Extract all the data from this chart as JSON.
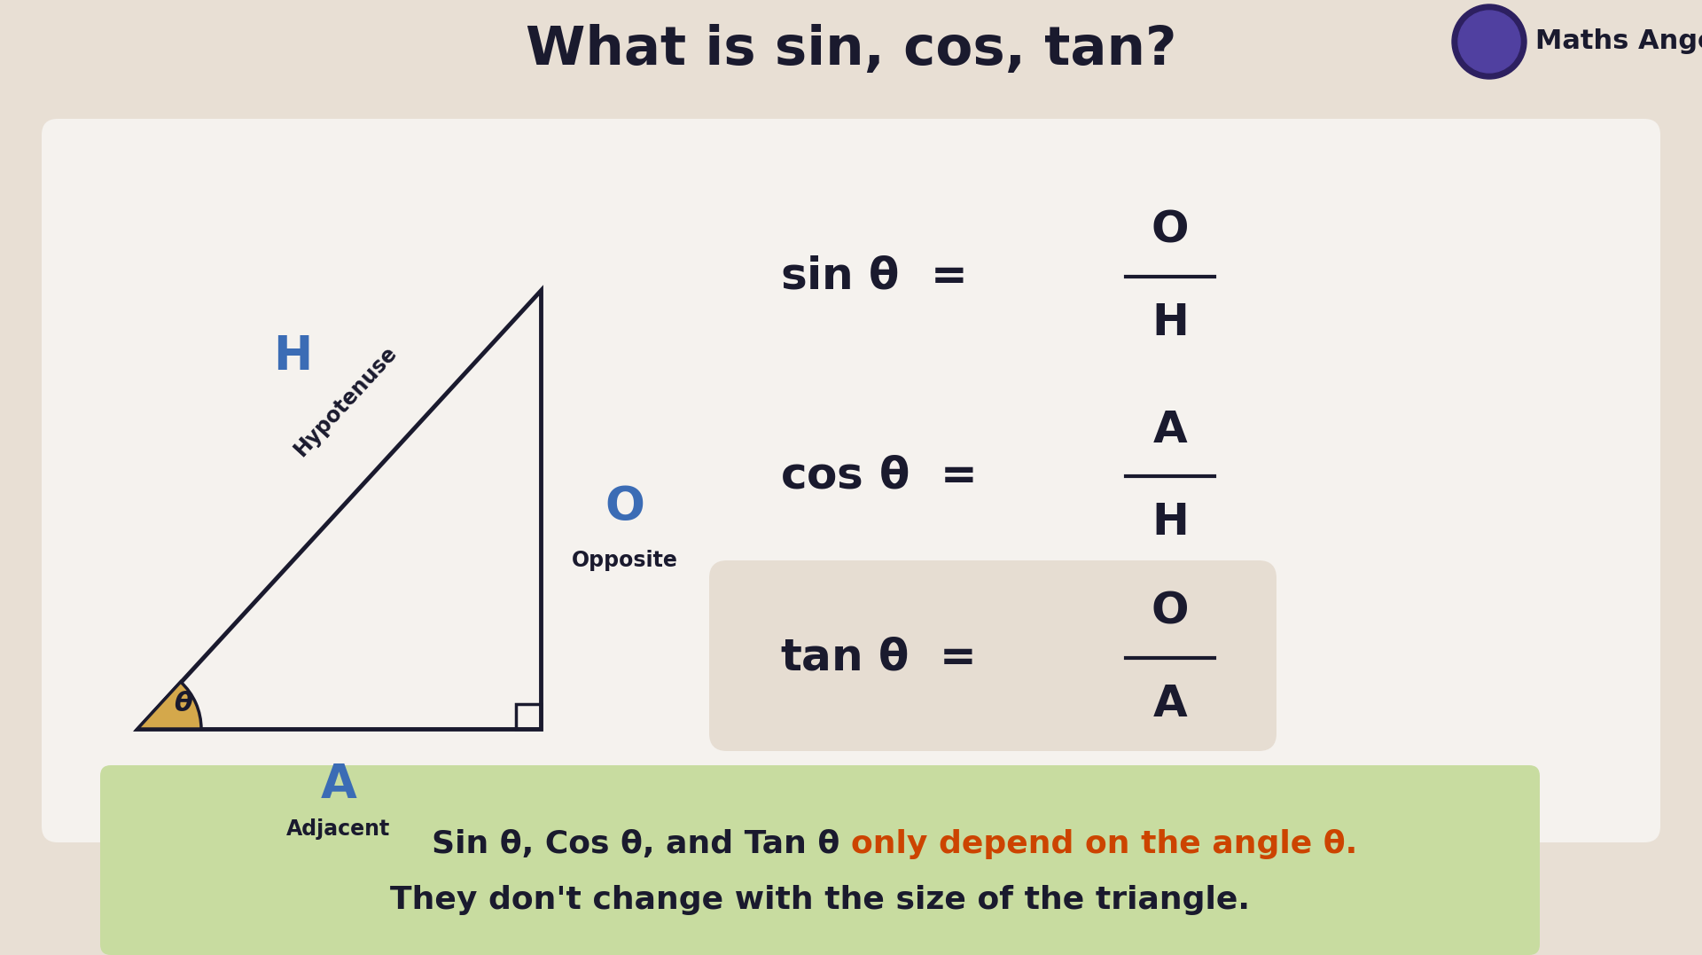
{
  "title": "What is sin, cos, tan?",
  "title_color": "#1a1a2e",
  "title_fontsize": 44,
  "bg_color": "#e8dfd4",
  "white_box_color": "#f5f2ee",
  "green_box_color": "#c8dca0",
  "tan_highlight_color": "#e6ddd2",
  "triangle_color": "#1a1a2e",
  "triangle_fill": "#f5f2ee",
  "theta_fill": "#d4a84b",
  "blue_label_color": "#3b6cb5",
  "dark_label_color": "#1a1a2e",
  "formula_color": "#1a1a2e",
  "red_highlight_color": "#cc4400",
  "bottom_text_black": "Sin θ, Cos θ, and Tan θ ",
  "bottom_text_red": "only depend on the angle θ.",
  "bottom_text_black2": "They don't change with the size of the triangle.",
  "brand_text": "Maths Angel",
  "sin_num": "O",
  "sin_den": "H",
  "cos_num": "A",
  "cos_den": "H",
  "tan_num": "O",
  "tan_den": "A",
  "H_label": "H",
  "hyp_label": "Hypotenuse",
  "O_label": "O",
  "opp_label": "Opposite",
  "A_label": "A",
  "adj_label": "Adjacent",
  "theta_label": "θ"
}
